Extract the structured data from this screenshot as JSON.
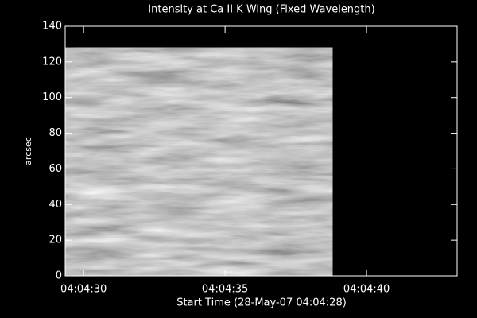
{
  "chart_data": {
    "type": "image",
    "title": "Intensity at Ca II K Wing (Fixed Wavelength)",
    "xlabel": "Start Time (28-May-07 04:04:28)",
    "ylabel": "arcsec",
    "xlim": [
      1.35,
      15.2
    ],
    "xticks": [
      {
        "value": 2,
        "label": "04:04:30"
      },
      {
        "value": 7,
        "label": "04:04:35"
      },
      {
        "value": 12,
        "label": "04:04:40"
      }
    ],
    "ylim": [
      0,
      140
    ],
    "yticks": [
      0,
      20,
      40,
      60,
      80,
      100,
      120,
      140
    ],
    "image_xlim": [
      1.35,
      10.8
    ],
    "image_ylim": [
      0,
      128
    ],
    "colormap": "gray"
  }
}
